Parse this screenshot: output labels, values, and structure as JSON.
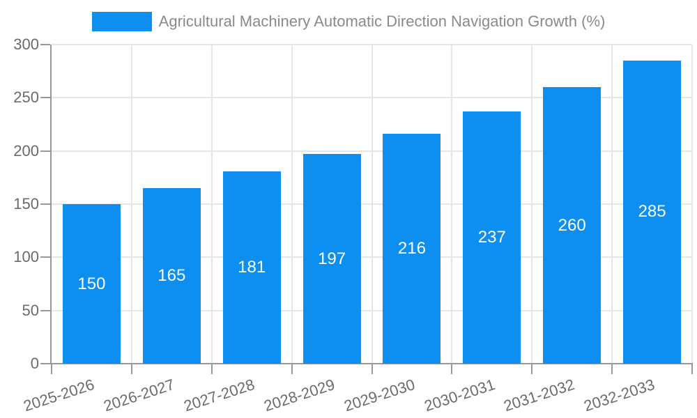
{
  "legend": {
    "series_label": "Agricultural Machinery Automatic Direction Navigation Growth (%)"
  },
  "chart_data": {
    "type": "bar",
    "title": "Agricultural Machinery Automatic Direction Navigation Growth (%)",
    "categories": [
      "2025-2026",
      "2026-2027",
      "2027-2028",
      "2028-2029",
      "2029-2030",
      "2030-2031",
      "2031-2032",
      "2032-2033"
    ],
    "values": [
      150,
      165,
      181,
      197,
      216,
      237,
      260,
      285
    ],
    "series": [
      {
        "name": "Agricultural Machinery Automatic Direction Navigation Growth (%)",
        "values": [
          150,
          165,
          181,
          197,
          216,
          237,
          260,
          285
        ]
      }
    ],
    "xlabel": "",
    "ylabel": "",
    "ylim": [
      0,
      300
    ],
    "yticks": [
      0,
      50,
      100,
      150,
      200,
      250,
      300
    ],
    "grid": true,
    "legend_position": "top-center",
    "value_label_position": "inside-center",
    "x_label_rotation_deg": 18,
    "colors": {
      "bar": "#0d8ff2",
      "value_label": "#ffffff",
      "axis_line": "#999999",
      "grid_line": "#e6e6e6",
      "axis_text": "#6b6b6b",
      "legend_text": "#8a8a8a",
      "background": "#ffffff"
    }
  }
}
